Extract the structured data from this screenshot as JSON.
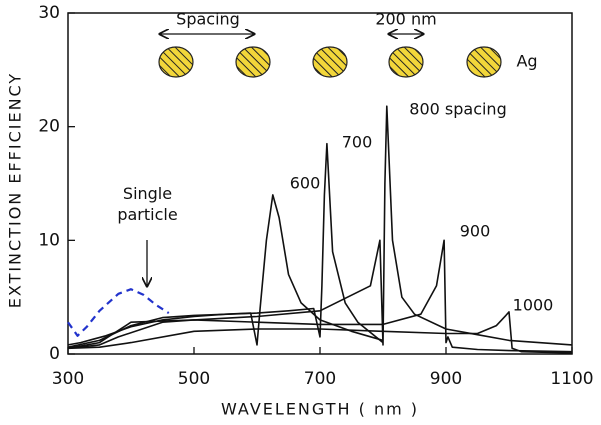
{
  "chart_data": {
    "type": "line",
    "x_label": "WAVELENGTH ( nm )",
    "y_label": "EXTINCTION EFFICIENCY",
    "xlim": [
      300,
      1100
    ],
    "xticks": [
      300,
      500,
      700,
      900,
      1100
    ],
    "ylim": [
      0,
      30
    ],
    "yticks": [
      0,
      10,
      20,
      30
    ],
    "annotations": [
      "Spacing",
      "200 nm",
      "Ag"
    ],
    "series": [
      {
        "name": "600",
        "color": "#111111",
        "dashed": false,
        "x": [
          300,
          320,
          340,
          360,
          380,
          400,
          450,
          500,
          550,
          590,
          600,
          605,
          615,
          625,
          635,
          650,
          670,
          700,
          750,
          800
        ],
        "values": [
          0.8,
          1.0,
          1.3,
          1.6,
          2.0,
          2.4,
          3.0,
          3.3,
          3.5,
          3.6,
          0.8,
          4,
          10,
          14,
          12,
          7,
          4.5,
          3.0,
          2.0,
          1.2
        ]
      },
      {
        "name": "700",
        "color": "#111111",
        "dashed": false,
        "x": [
          300,
          350,
          400,
          450,
          500,
          600,
          650,
          690,
          700,
          703,
          707,
          711,
          720,
          740,
          760,
          800
        ],
        "values": [
          0.6,
          1.2,
          2.5,
          3.2,
          3.4,
          3.6,
          3.8,
          4.0,
          1.5,
          6,
          14,
          18.5,
          9,
          4.5,
          2.8,
          1.0
        ]
      },
      {
        "name": "800 spacing",
        "color": "#111111",
        "dashed": false,
        "x": [
          300,
          350,
          400,
          500,
          600,
          700,
          780,
          795,
          800,
          803,
          806,
          815,
          830,
          850,
          900,
          950,
          1000,
          1100
        ],
        "values": [
          0.5,
          1.0,
          2.8,
          3.0,
          3.3,
          3.8,
          6,
          10,
          0.8,
          15,
          21.8,
          10,
          5,
          3.5,
          2.2,
          1.7,
          1.2,
          0.8
        ]
      },
      {
        "name": "900",
        "color": "#111111",
        "dashed": false,
        "x": [
          300,
          350,
          380,
          450,
          500,
          600,
          700,
          800,
          860,
          885,
          897,
          900,
          903,
          910,
          950,
          1000,
          1100
        ],
        "values": [
          0.5,
          0.8,
          1.5,
          2.8,
          3.0,
          2.8,
          2.6,
          2.6,
          3.5,
          6,
          10,
          1,
          1.5,
          0.6,
          0.4,
          0.3,
          0.2
        ]
      },
      {
        "name": "1000",
        "color": "#111111",
        "dashed": false,
        "x": [
          300,
          350,
          400,
          500,
          600,
          700,
          800,
          900,
          950,
          980,
          995,
          1000,
          1005,
          1020,
          1100
        ],
        "values": [
          0.5,
          0.6,
          1.0,
          2.0,
          2.2,
          2.2,
          2.0,
          1.8,
          1.8,
          2.5,
          3.4,
          3.7,
          0.5,
          0.2,
          0.1
        ]
      },
      {
        "name": "Single particle",
        "color": "#2233cc",
        "dashed": true,
        "x": [
          300,
          315,
          330,
          350,
          380,
          400,
          420,
          440,
          460
        ],
        "values": [
          2.8,
          1.6,
          2.4,
          3.8,
          5.3,
          5.7,
          5.2,
          4.3,
          3.6
        ]
      }
    ]
  }
}
